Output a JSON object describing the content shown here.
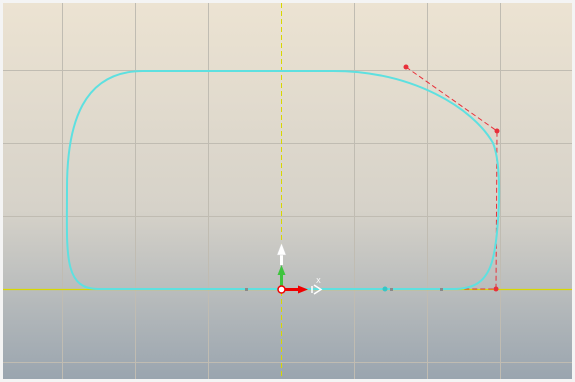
{
  "viewport": {
    "gradient_top": "#ece3d2",
    "gradient_mid": "#d6d2c9",
    "gradient_bottom": "#9aa5af"
  },
  "colors": {
    "grid": "#c0bcb2",
    "curve": "#5ee0e0",
    "control": "#e8303a",
    "x_axis": "#f00000",
    "y_axis": "#3ec43e",
    "up_arrow": "#ffffff",
    "origin_line": "#d8d800"
  },
  "gizmo": {
    "x_label": "X"
  },
  "icons": {
    "gizmo": "move-gizmo-icon",
    "knot": "knot-marker-icon",
    "control_point": "control-point-icon"
  }
}
